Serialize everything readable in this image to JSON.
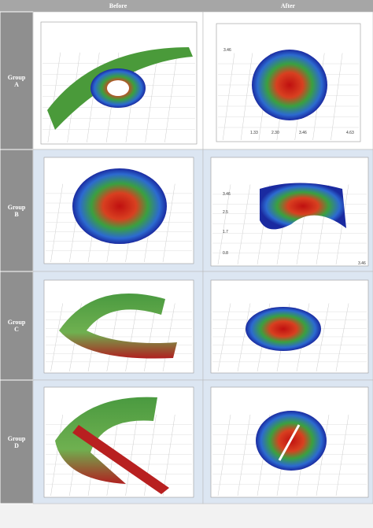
{
  "header": {
    "columns": [
      "Before",
      "After"
    ]
  },
  "rows": [
    {
      "label": "Group A",
      "after_ticks": [
        "3.46",
        "1.33",
        "2.30",
        "3.46",
        "4.63"
      ]
    },
    {
      "label": "Group B",
      "after_ticks": [
        "3.46",
        "2.5",
        "1.7",
        "0.8",
        "3.46"
      ]
    },
    {
      "label": "Group C"
    },
    {
      "label": "Group D"
    }
  ]
}
